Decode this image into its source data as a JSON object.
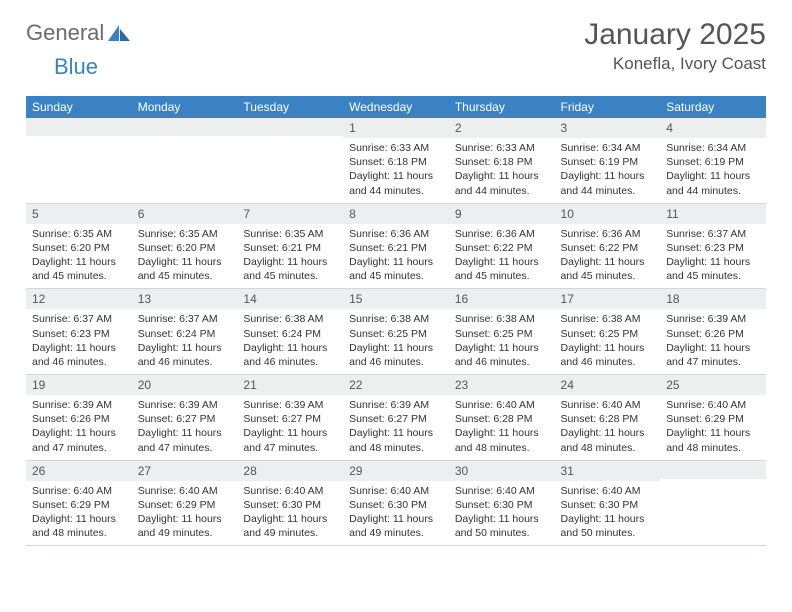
{
  "logo": {
    "word1": "General",
    "word2": "Blue",
    "text_color": "#6b6b6b",
    "accent_color": "#3b82c4"
  },
  "title": "January 2025",
  "location": "Konefla, Ivory Coast",
  "header_bg": "#3b82c4",
  "header_fg": "#ffffff",
  "daynum_bg": "#eceef0",
  "body_bg": "#ffffff",
  "border_color": "#d0d6dc",
  "weekdays": [
    "Sunday",
    "Monday",
    "Tuesday",
    "Wednesday",
    "Thursday",
    "Friday",
    "Saturday"
  ],
  "weeks": [
    [
      {
        "n": "",
        "lines": []
      },
      {
        "n": "",
        "lines": []
      },
      {
        "n": "",
        "lines": []
      },
      {
        "n": "1",
        "lines": [
          "Sunrise: 6:33 AM",
          "Sunset: 6:18 PM",
          "Daylight: 11 hours and 44 minutes."
        ]
      },
      {
        "n": "2",
        "lines": [
          "Sunrise: 6:33 AM",
          "Sunset: 6:18 PM",
          "Daylight: 11 hours and 44 minutes."
        ]
      },
      {
        "n": "3",
        "lines": [
          "Sunrise: 6:34 AM",
          "Sunset: 6:19 PM",
          "Daylight: 11 hours and 44 minutes."
        ]
      },
      {
        "n": "4",
        "lines": [
          "Sunrise: 6:34 AM",
          "Sunset: 6:19 PM",
          "Daylight: 11 hours and 44 minutes."
        ]
      }
    ],
    [
      {
        "n": "5",
        "lines": [
          "Sunrise: 6:35 AM",
          "Sunset: 6:20 PM",
          "Daylight: 11 hours and 45 minutes."
        ]
      },
      {
        "n": "6",
        "lines": [
          "Sunrise: 6:35 AM",
          "Sunset: 6:20 PM",
          "Daylight: 11 hours and 45 minutes."
        ]
      },
      {
        "n": "7",
        "lines": [
          "Sunrise: 6:35 AM",
          "Sunset: 6:21 PM",
          "Daylight: 11 hours and 45 minutes."
        ]
      },
      {
        "n": "8",
        "lines": [
          "Sunrise: 6:36 AM",
          "Sunset: 6:21 PM",
          "Daylight: 11 hours and 45 minutes."
        ]
      },
      {
        "n": "9",
        "lines": [
          "Sunrise: 6:36 AM",
          "Sunset: 6:22 PM",
          "Daylight: 11 hours and 45 minutes."
        ]
      },
      {
        "n": "10",
        "lines": [
          "Sunrise: 6:36 AM",
          "Sunset: 6:22 PM",
          "Daylight: 11 hours and 45 minutes."
        ]
      },
      {
        "n": "11",
        "lines": [
          "Sunrise: 6:37 AM",
          "Sunset: 6:23 PM",
          "Daylight: 11 hours and 45 minutes."
        ]
      }
    ],
    [
      {
        "n": "12",
        "lines": [
          "Sunrise: 6:37 AM",
          "Sunset: 6:23 PM",
          "Daylight: 11 hours and 46 minutes."
        ]
      },
      {
        "n": "13",
        "lines": [
          "Sunrise: 6:37 AM",
          "Sunset: 6:24 PM",
          "Daylight: 11 hours and 46 minutes."
        ]
      },
      {
        "n": "14",
        "lines": [
          "Sunrise: 6:38 AM",
          "Sunset: 6:24 PM",
          "Daylight: 11 hours and 46 minutes."
        ]
      },
      {
        "n": "15",
        "lines": [
          "Sunrise: 6:38 AM",
          "Sunset: 6:25 PM",
          "Daylight: 11 hours and 46 minutes."
        ]
      },
      {
        "n": "16",
        "lines": [
          "Sunrise: 6:38 AM",
          "Sunset: 6:25 PM",
          "Daylight: 11 hours and 46 minutes."
        ]
      },
      {
        "n": "17",
        "lines": [
          "Sunrise: 6:38 AM",
          "Sunset: 6:25 PM",
          "Daylight: 11 hours and 46 minutes."
        ]
      },
      {
        "n": "18",
        "lines": [
          "Sunrise: 6:39 AM",
          "Sunset: 6:26 PM",
          "Daylight: 11 hours and 47 minutes."
        ]
      }
    ],
    [
      {
        "n": "19",
        "lines": [
          "Sunrise: 6:39 AM",
          "Sunset: 6:26 PM",
          "Daylight: 11 hours and 47 minutes."
        ]
      },
      {
        "n": "20",
        "lines": [
          "Sunrise: 6:39 AM",
          "Sunset: 6:27 PM",
          "Daylight: 11 hours and 47 minutes."
        ]
      },
      {
        "n": "21",
        "lines": [
          "Sunrise: 6:39 AM",
          "Sunset: 6:27 PM",
          "Daylight: 11 hours and 47 minutes."
        ]
      },
      {
        "n": "22",
        "lines": [
          "Sunrise: 6:39 AM",
          "Sunset: 6:27 PM",
          "Daylight: 11 hours and 48 minutes."
        ]
      },
      {
        "n": "23",
        "lines": [
          "Sunrise: 6:40 AM",
          "Sunset: 6:28 PM",
          "Daylight: 11 hours and 48 minutes."
        ]
      },
      {
        "n": "24",
        "lines": [
          "Sunrise: 6:40 AM",
          "Sunset: 6:28 PM",
          "Daylight: 11 hours and 48 minutes."
        ]
      },
      {
        "n": "25",
        "lines": [
          "Sunrise: 6:40 AM",
          "Sunset: 6:29 PM",
          "Daylight: 11 hours and 48 minutes."
        ]
      }
    ],
    [
      {
        "n": "26",
        "lines": [
          "Sunrise: 6:40 AM",
          "Sunset: 6:29 PM",
          "Daylight: 11 hours and 48 minutes."
        ]
      },
      {
        "n": "27",
        "lines": [
          "Sunrise: 6:40 AM",
          "Sunset: 6:29 PM",
          "Daylight: 11 hours and 49 minutes."
        ]
      },
      {
        "n": "28",
        "lines": [
          "Sunrise: 6:40 AM",
          "Sunset: 6:30 PM",
          "Daylight: 11 hours and 49 minutes."
        ]
      },
      {
        "n": "29",
        "lines": [
          "Sunrise: 6:40 AM",
          "Sunset: 6:30 PM",
          "Daylight: 11 hours and 49 minutes."
        ]
      },
      {
        "n": "30",
        "lines": [
          "Sunrise: 6:40 AM",
          "Sunset: 6:30 PM",
          "Daylight: 11 hours and 50 minutes."
        ]
      },
      {
        "n": "31",
        "lines": [
          "Sunrise: 6:40 AM",
          "Sunset: 6:30 PM",
          "Daylight: 11 hours and 50 minutes."
        ]
      },
      {
        "n": "",
        "lines": []
      }
    ]
  ]
}
